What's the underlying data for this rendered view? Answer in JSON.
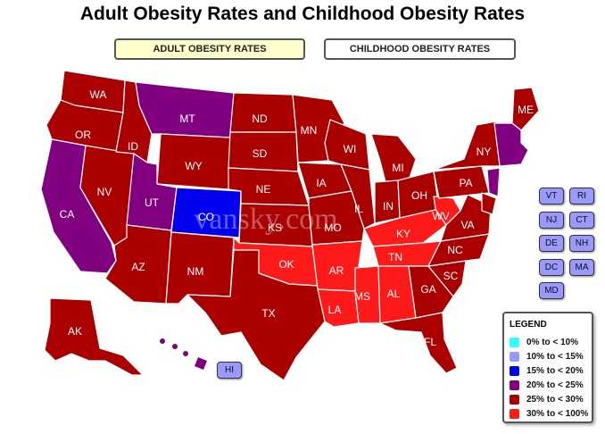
{
  "title": "Adult Obesity Rates and Childhood Obesity Rates",
  "tabs": {
    "adult": "ADULT OBESITY RATES",
    "childhood": "CHILDHOOD OBESITY RATES"
  },
  "colors": {
    "c0": "#33ffff",
    "c10": "#9999ff",
    "c15": "#0000ee",
    "c20": "#800080",
    "c25": "#aa0000",
    "c30": "#ff1a1a"
  },
  "map": {
    "watermark": "vansky.com",
    "labels": {
      "WA": "WA",
      "OR": "OR",
      "CA": "CA",
      "ID": "ID",
      "NV": "NV",
      "MT": "MT",
      "WY": "WY",
      "UT": "UT",
      "AZ": "AZ",
      "CO": "CO",
      "NM": "NM",
      "ND": "ND",
      "SD": "SD",
      "NE": "NE",
      "KS": "KS",
      "OK": "OK",
      "TX": "TX",
      "MN": "MN",
      "IA": "IA",
      "MO": "MO",
      "AR": "AR",
      "LA": "LA",
      "WI": "WI",
      "IL": "IL",
      "MS": "MS",
      "MI": "MI",
      "IN": "IN",
      "KY": "KY",
      "TN": "TN",
      "AL": "AL",
      "OH": "OH",
      "WV": "WV",
      "GA": "GA",
      "FL": "FL",
      "SC": "SC",
      "NC": "NC",
      "VA": "VA",
      "PA": "PA",
      "NY": "NY",
      "ME": "ME",
      "AK": "AK"
    }
  },
  "small_states": {
    "VT": "VT",
    "RI": "RI",
    "NJ": "NJ",
    "CT": "CT",
    "DE": "DE",
    "NH": "NH",
    "DC": "DC",
    "MA": "MA",
    "MD": "MD",
    "HI": "HI"
  },
  "legend": {
    "title": "LEGEND",
    "items": [
      {
        "label": "0% to < 10%"
      },
      {
        "label": "10% to < 15%"
      },
      {
        "label": "15% to < 20%"
      },
      {
        "label": "20% to < 25%"
      },
      {
        "label": "25% to < 30%"
      },
      {
        "label": "30% to < 100%"
      }
    ]
  }
}
